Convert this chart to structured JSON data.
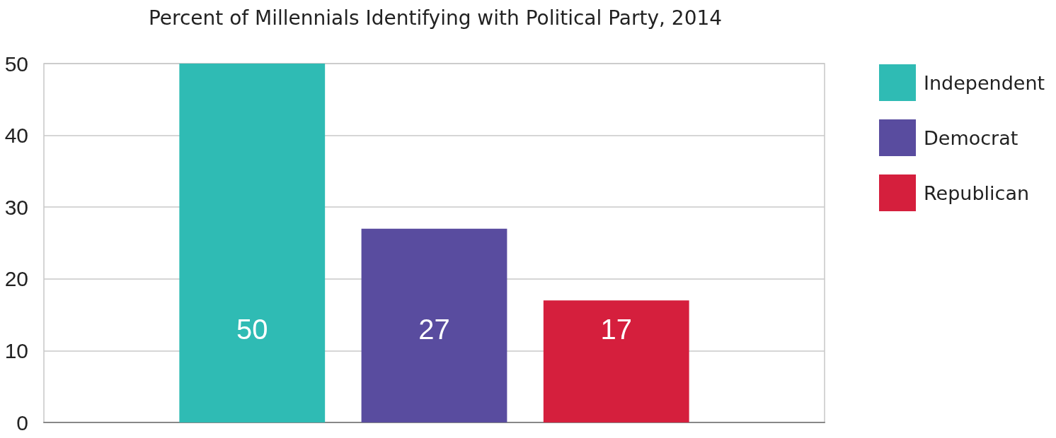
{
  "chart_data": {
    "type": "bar",
    "title": "Percent of Millennials Identifying with Political Party, 2014",
    "categories": [
      null
    ],
    "series": [
      {
        "name": "Independent",
        "color": "#2fbbb4",
        "values": [
          50
        ]
      },
      {
        "name": "Democrat",
        "color": "#594c9f",
        "values": [
          27
        ]
      },
      {
        "name": "Republican",
        "color": "#d51f3d",
        "values": [
          17
        ]
      }
    ],
    "ylim": [
      0,
      50
    ],
    "yticks": [
      0,
      10,
      20,
      30,
      40,
      50
    ],
    "grid": "y",
    "legend": "right",
    "data_labels": true
  }
}
